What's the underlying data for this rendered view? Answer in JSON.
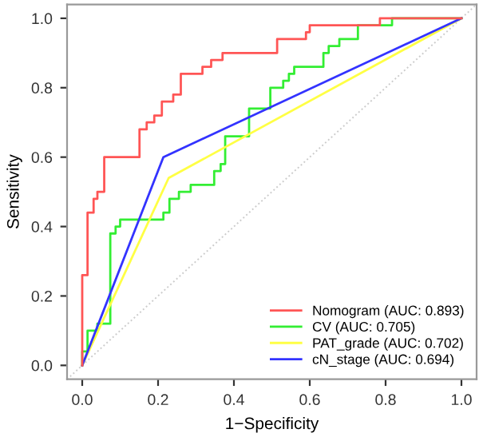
{
  "chart_data": {
    "type": "step",
    "xlabel": "1−Specificity",
    "ylabel": "Sensitivity",
    "xlim": [
      -0.04,
      1.04
    ],
    "ylim": [
      -0.04,
      1.04
    ],
    "xticks": [
      {
        "value": 0,
        "label": "0.0"
      },
      {
        "value": 0.2,
        "label": "0.2"
      },
      {
        "value": 0.4,
        "label": "0.4"
      },
      {
        "value": 0.6,
        "label": "0.6"
      },
      {
        "value": 0.8,
        "label": "0.8"
      },
      {
        "value": 1,
        "label": "1.0"
      }
    ],
    "yticks": [
      {
        "value": 0,
        "label": "0.0"
      },
      {
        "value": 0.2,
        "label": "0.2"
      },
      {
        "value": 0.4,
        "label": "0.4"
      },
      {
        "value": 0.6,
        "label": "0.6"
      },
      {
        "value": 0.8,
        "label": "0.8"
      },
      {
        "value": 1,
        "label": "1.0"
      }
    ],
    "grid": false,
    "legend": "bottom right",
    "marker": "none",
    "series": [
      {
        "type": "line",
        "color": "#cccccc",
        "line_style": "dotted",
        "x": [
          -0.04,
          1.04
        ],
        "values": [
          -0.04,
          1.04
        ]
      },
      {
        "name": "CV (AUC: 0.705)",
        "color": "#33ee33",
        "x": [
          0,
          0,
          0.014,
          0.014,
          0.04,
          0.04,
          0.074,
          0.074,
          0.088,
          0.088,
          0.1,
          0.1,
          0.214,
          0.214,
          0.23,
          0.23,
          0.255,
          0.255,
          0.286,
          0.286,
          0.348,
          0.348,
          0.365,
          0.365,
          0.377,
          0.377,
          0.44,
          0.44,
          0.496,
          0.496,
          0.53,
          0.53,
          0.545,
          0.545,
          0.559,
          0.559,
          0.636,
          0.636,
          0.65,
          0.65,
          0.678,
          0.678,
          0.727,
          0.727,
          0.817,
          0.817,
          1
        ],
        "values": [
          0,
          0.04,
          0.04,
          0.1,
          0.1,
          0.12,
          0.12,
          0.38,
          0.38,
          0.4,
          0.4,
          0.42,
          0.42,
          0.44,
          0.44,
          0.48,
          0.48,
          0.5,
          0.5,
          0.52,
          0.52,
          0.56,
          0.56,
          0.58,
          0.58,
          0.66,
          0.66,
          0.74,
          0.74,
          0.8,
          0.8,
          0.82,
          0.82,
          0.84,
          0.84,
          0.86,
          0.86,
          0.9,
          0.9,
          0.92,
          0.92,
          0.94,
          0.94,
          0.98,
          0.98,
          1,
          1
        ]
      },
      {
        "name": "PAT_grade (AUC: 0.702)",
        "color": "#ffff44",
        "x": [
          0,
          0.228,
          1
        ],
        "values": [
          0,
          0.54,
          1
        ]
      },
      {
        "name": "cN_stage (AUC: 0.694)",
        "color": "#3333ff",
        "x": [
          0,
          0.214,
          1
        ],
        "values": [
          0,
          0.6,
          1
        ]
      },
      {
        "name": "Nomogram (AUC: 0.893)",
        "color": "#ff5555",
        "x": [
          0,
          0,
          0.014,
          0.014,
          0.03,
          0.03,
          0.04,
          0.04,
          0.058,
          0.058,
          0.151,
          0.151,
          0.17,
          0.17,
          0.19,
          0.19,
          0.21,
          0.21,
          0.24,
          0.24,
          0.26,
          0.26,
          0.317,
          0.317,
          0.34,
          0.34,
          0.37,
          0.37,
          0.514,
          0.514,
          0.59,
          0.59,
          0.6,
          0.6,
          0.785,
          0.785,
          1
        ],
        "values": [
          0,
          0.26,
          0.26,
          0.44,
          0.44,
          0.48,
          0.48,
          0.5,
          0.5,
          0.6,
          0.6,
          0.68,
          0.68,
          0.7,
          0.7,
          0.72,
          0.72,
          0.76,
          0.76,
          0.78,
          0.78,
          0.84,
          0.84,
          0.86,
          0.86,
          0.88,
          0.88,
          0.9,
          0.9,
          0.94,
          0.94,
          0.96,
          0.96,
          0.98,
          0.98,
          1,
          1
        ]
      }
    ]
  }
}
